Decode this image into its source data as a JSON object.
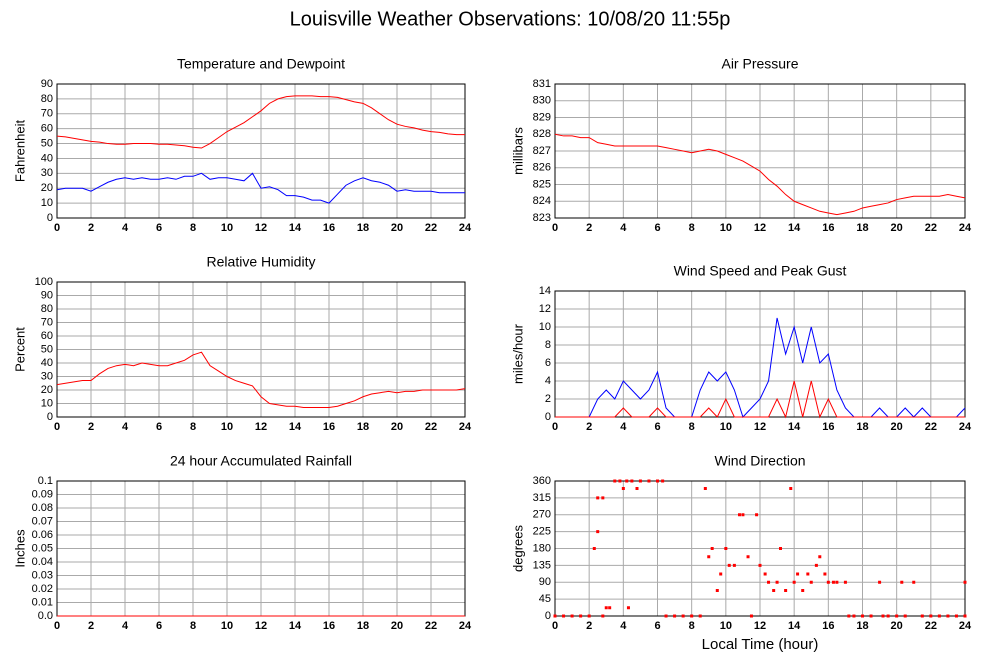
{
  "title": "Louisville Weather Observations: 10/08/20 11:55p",
  "chart_data": [
    {
      "type": "line",
      "title": "Temperature and Dewpoint",
      "ylabel": "Fahrenheit",
      "x": [
        0,
        0.5,
        1,
        1.5,
        2,
        2.5,
        3,
        3.5,
        4,
        4.5,
        5,
        5.5,
        6,
        6.5,
        7,
        7.5,
        8,
        8.5,
        9,
        9.5,
        10,
        10.5,
        11,
        11.5,
        12,
        12.5,
        13,
        13.5,
        14,
        14.5,
        15,
        15.5,
        16,
        16.5,
        17,
        17.5,
        18,
        18.5,
        19,
        19.5,
        20,
        20.5,
        21,
        21.5,
        22,
        22.5,
        23,
        23.5,
        24
      ],
      "series": [
        {
          "color": "#ff0000",
          "values": [
            55,
            54.5,
            53.5,
            52.5,
            51.5,
            51,
            50,
            49.5,
            49.5,
            50,
            50,
            50,
            49.5,
            49.5,
            49,
            48.5,
            47.5,
            47,
            50,
            54,
            58,
            61,
            64,
            68,
            72,
            77,
            80,
            81.5,
            82,
            82,
            82,
            81.5,
            81.5,
            81,
            79.5,
            78,
            77,
            74,
            70,
            66,
            63,
            61.5,
            60.5,
            59,
            58,
            57.5,
            56.5,
            56,
            56
          ]
        },
        {
          "color": "#0000ff",
          "values": [
            19,
            20,
            20,
            20,
            18,
            21,
            24,
            26,
            27,
            26,
            27,
            26,
            26,
            27,
            26,
            28,
            28,
            30,
            26,
            27,
            27,
            26,
            25,
            30,
            20,
            21,
            19,
            15,
            15,
            14,
            12,
            12,
            10,
            16,
            22,
            25,
            27,
            25,
            24,
            22,
            18,
            19,
            18,
            18,
            18,
            17,
            17,
            17,
            17
          ]
        }
      ],
      "xlim": [
        0,
        24
      ],
      "xticks": [
        0,
        2,
        4,
        6,
        8,
        10,
        12,
        14,
        16,
        18,
        20,
        22,
        24
      ],
      "ylim": [
        0,
        90
      ],
      "yticks": [
        0,
        10,
        20,
        30,
        40,
        50,
        60,
        70,
        80,
        90
      ],
      "grid": true
    },
    {
      "type": "line",
      "title": "Air Pressure",
      "ylabel": "millibars",
      "x": [
        0,
        0.5,
        1,
        1.5,
        2,
        2.5,
        3,
        3.5,
        4,
        4.5,
        5,
        5.5,
        6,
        6.5,
        7,
        7.5,
        8,
        8.5,
        9,
        9.5,
        10,
        10.5,
        11,
        11.5,
        12,
        12.5,
        13,
        13.5,
        14,
        14.5,
        15,
        15.5,
        16,
        16.5,
        17,
        17.5,
        18,
        18.5,
        19,
        19.5,
        20,
        20.5,
        21,
        21.5,
        22,
        22.5,
        23,
        23.5,
        24
      ],
      "series": [
        {
          "color": "#ff0000",
          "values": [
            828,
            827.9,
            827.9,
            827.8,
            827.8,
            827.5,
            827.4,
            827.3,
            827.3,
            827.3,
            827.3,
            827.3,
            827.3,
            827.2,
            827.1,
            827,
            826.9,
            827,
            827.1,
            827,
            826.8,
            826.6,
            826.4,
            826.1,
            825.8,
            825.3,
            824.9,
            824.4,
            824,
            823.8,
            823.6,
            823.4,
            823.3,
            823.2,
            823.3,
            823.4,
            823.6,
            823.7,
            823.8,
            823.9,
            824.1,
            824.2,
            824.3,
            824.3,
            824.3,
            824.3,
            824.4,
            824.3,
            824.2
          ]
        }
      ],
      "xlim": [
        0,
        24
      ],
      "xticks": [
        0,
        2,
        4,
        6,
        8,
        10,
        12,
        14,
        16,
        18,
        20,
        22,
        24
      ],
      "ylim": [
        823,
        831
      ],
      "yticks": [
        823,
        824,
        825,
        826,
        827,
        828,
        829,
        830,
        831
      ],
      "grid": true
    },
    {
      "type": "line",
      "title": "Relative Humidity",
      "ylabel": "Percent",
      "x": [
        0,
        0.5,
        1,
        1.5,
        2,
        2.5,
        3,
        3.5,
        4,
        4.5,
        5,
        5.5,
        6,
        6.5,
        7,
        7.5,
        8,
        8.5,
        9,
        9.5,
        10,
        10.5,
        11,
        11.5,
        12,
        12.5,
        13,
        13.5,
        14,
        14.5,
        15,
        15.5,
        16,
        16.5,
        17,
        17.5,
        18,
        18.5,
        19,
        19.5,
        20,
        20.5,
        21,
        21.5,
        22,
        22.5,
        23,
        23.5,
        24
      ],
      "series": [
        {
          "color": "#ff0000",
          "values": [
            24,
            25,
            26,
            27,
            27,
            32,
            36,
            38,
            39,
            38,
            40,
            39,
            38,
            38,
            40,
            42,
            46,
            48,
            38,
            34,
            30,
            27,
            25,
            23,
            15,
            10,
            9,
            8,
            8,
            7,
            7,
            7,
            7,
            8,
            10,
            12,
            15,
            17,
            18,
            19,
            18,
            19,
            19,
            20,
            20,
            20,
            20,
            20,
            21
          ]
        }
      ],
      "xlim": [
        0,
        24
      ],
      "xticks": [
        0,
        2,
        4,
        6,
        8,
        10,
        12,
        14,
        16,
        18,
        20,
        22,
        24
      ],
      "ylim": [
        0,
        100
      ],
      "yticks": [
        0,
        10,
        20,
        30,
        40,
        50,
        60,
        70,
        80,
        90,
        100
      ],
      "grid": true
    },
    {
      "type": "line",
      "title": "Wind Speed and Peak Gust",
      "ylabel": "miles/hour",
      "x": [
        0,
        0.5,
        1,
        1.5,
        2,
        2.5,
        3,
        3.5,
        4,
        4.5,
        5,
        5.5,
        6,
        6.5,
        7,
        7.5,
        8,
        8.5,
        9,
        9.5,
        10,
        10.5,
        11,
        11.5,
        12,
        12.5,
        13,
        13.5,
        14,
        14.5,
        15,
        15.5,
        16,
        16.5,
        17,
        17.5,
        18,
        18.5,
        19,
        19.5,
        20,
        20.5,
        21,
        21.5,
        22,
        22.5,
        23,
        23.5,
        24
      ],
      "series": [
        {
          "color": "#0000ff",
          "values": [
            0,
            0,
            0,
            0,
            0,
            2,
            3,
            2,
            4,
            3,
            2,
            3,
            5,
            1,
            0,
            0,
            0,
            3,
            5,
            4,
            5,
            3,
            0,
            1,
            2,
            4,
            11,
            7,
            10,
            6,
            10,
            6,
            7,
            3,
            1,
            0,
            0,
            0,
            1,
            0,
            0,
            1,
            0,
            1,
            0,
            0,
            0,
            0,
            1
          ]
        },
        {
          "color": "#ff0000",
          "values": [
            0,
            0,
            0,
            0,
            0,
            0,
            0,
            0,
            1,
            0,
            0,
            0,
            1,
            0,
            0,
            0,
            0,
            0,
            1,
            0,
            2,
            0,
            0,
            0,
            0,
            0,
            2,
            0,
            4,
            0,
            4,
            0,
            2,
            0,
            0,
            0,
            0,
            0,
            0,
            0,
            0,
            0,
            0,
            0,
            0,
            0,
            0,
            0,
            0
          ]
        }
      ],
      "xlim": [
        0,
        24
      ],
      "xticks": [
        0,
        2,
        4,
        6,
        8,
        10,
        12,
        14,
        16,
        18,
        20,
        22,
        24
      ],
      "ylim": [
        0,
        14
      ],
      "yticks": [
        0,
        2,
        4,
        6,
        8,
        10,
        12,
        14
      ],
      "grid": true
    },
    {
      "type": "line",
      "title": "24 hour Accumulated Rainfall",
      "ylabel": "Inches",
      "x": [
        0,
        24
      ],
      "series": [
        {
          "color": "#ff0000",
          "values": [
            0,
            0
          ]
        }
      ],
      "xlim": [
        0,
        24
      ],
      "xticks": [
        0,
        2,
        4,
        6,
        8,
        10,
        12,
        14,
        16,
        18,
        20,
        22,
        24
      ],
      "ylim": [
        0,
        0.1
      ],
      "yticks": [
        {
          "value": 0,
          "label": "0.0"
        },
        0.01,
        0.02,
        0.03,
        0.04,
        0.05,
        0.06,
        0.07,
        0.08,
        0.09,
        {
          "value": 0.1,
          "label": "0.1"
        }
      ],
      "grid": true
    },
    {
      "type": "scatter",
      "title": "Wind Direction",
      "ylabel": "degrees",
      "xlabel": "Local Time (hour)",
      "x": [
        0,
        0.5,
        1,
        1.5,
        2,
        2.3,
        2.5,
        2.5,
        2.8,
        2.8,
        3,
        3.2,
        3.5,
        3.8,
        4,
        4.2,
        4.3,
        4.5,
        4.8,
        5,
        5.5,
        6,
        6.3,
        6.5,
        7,
        7.5,
        8,
        8.5,
        8.8,
        9,
        9.2,
        9.5,
        9.7,
        10,
        10.2,
        10.5,
        10.8,
        11,
        11.3,
        11.5,
        11.8,
        12,
        12.3,
        12.5,
        12.8,
        13,
        13.2,
        13.5,
        13.8,
        14,
        14.2,
        14.5,
        14.8,
        15,
        15.3,
        15.5,
        15.8,
        16,
        16.3,
        16.5,
        17,
        17.2,
        17.5,
        18,
        18.5,
        19,
        19.2,
        19.5,
        20,
        20.3,
        20.5,
        21,
        21.5,
        22,
        22.5,
        23,
        23.5,
        24,
        24
      ],
      "values": [
        0,
        0,
        0,
        0,
        0,
        180,
        225,
        315,
        315,
        0,
        22,
        22,
        360,
        360,
        340,
        360,
        22,
        360,
        340,
        360,
        360,
        360,
        360,
        0,
        0,
        0,
        0,
        0,
        340,
        158,
        180,
        68,
        112,
        180,
        135,
        135,
        270,
        270,
        158,
        0,
        270,
        135,
        112,
        90,
        68,
        90,
        180,
        68,
        340,
        90,
        112,
        68,
        112,
        90,
        135,
        158,
        112,
        90,
        90,
        90,
        90,
        0,
        0,
        0,
        0,
        90,
        0,
        0,
        0,
        90,
        0,
        90,
        0,
        0,
        0,
        0,
        0,
        0,
        90
      ],
      "color": "#ff0000",
      "xlim": [
        0,
        24
      ],
      "xticks": [
        0,
        2,
        4,
        6,
        8,
        10,
        12,
        14,
        16,
        18,
        20,
        22,
        24
      ],
      "ylim": [
        0,
        360
      ],
      "yticks": [
        0,
        45,
        90,
        135,
        180,
        225,
        270,
        315,
        360
      ],
      "grid": true
    }
  ]
}
